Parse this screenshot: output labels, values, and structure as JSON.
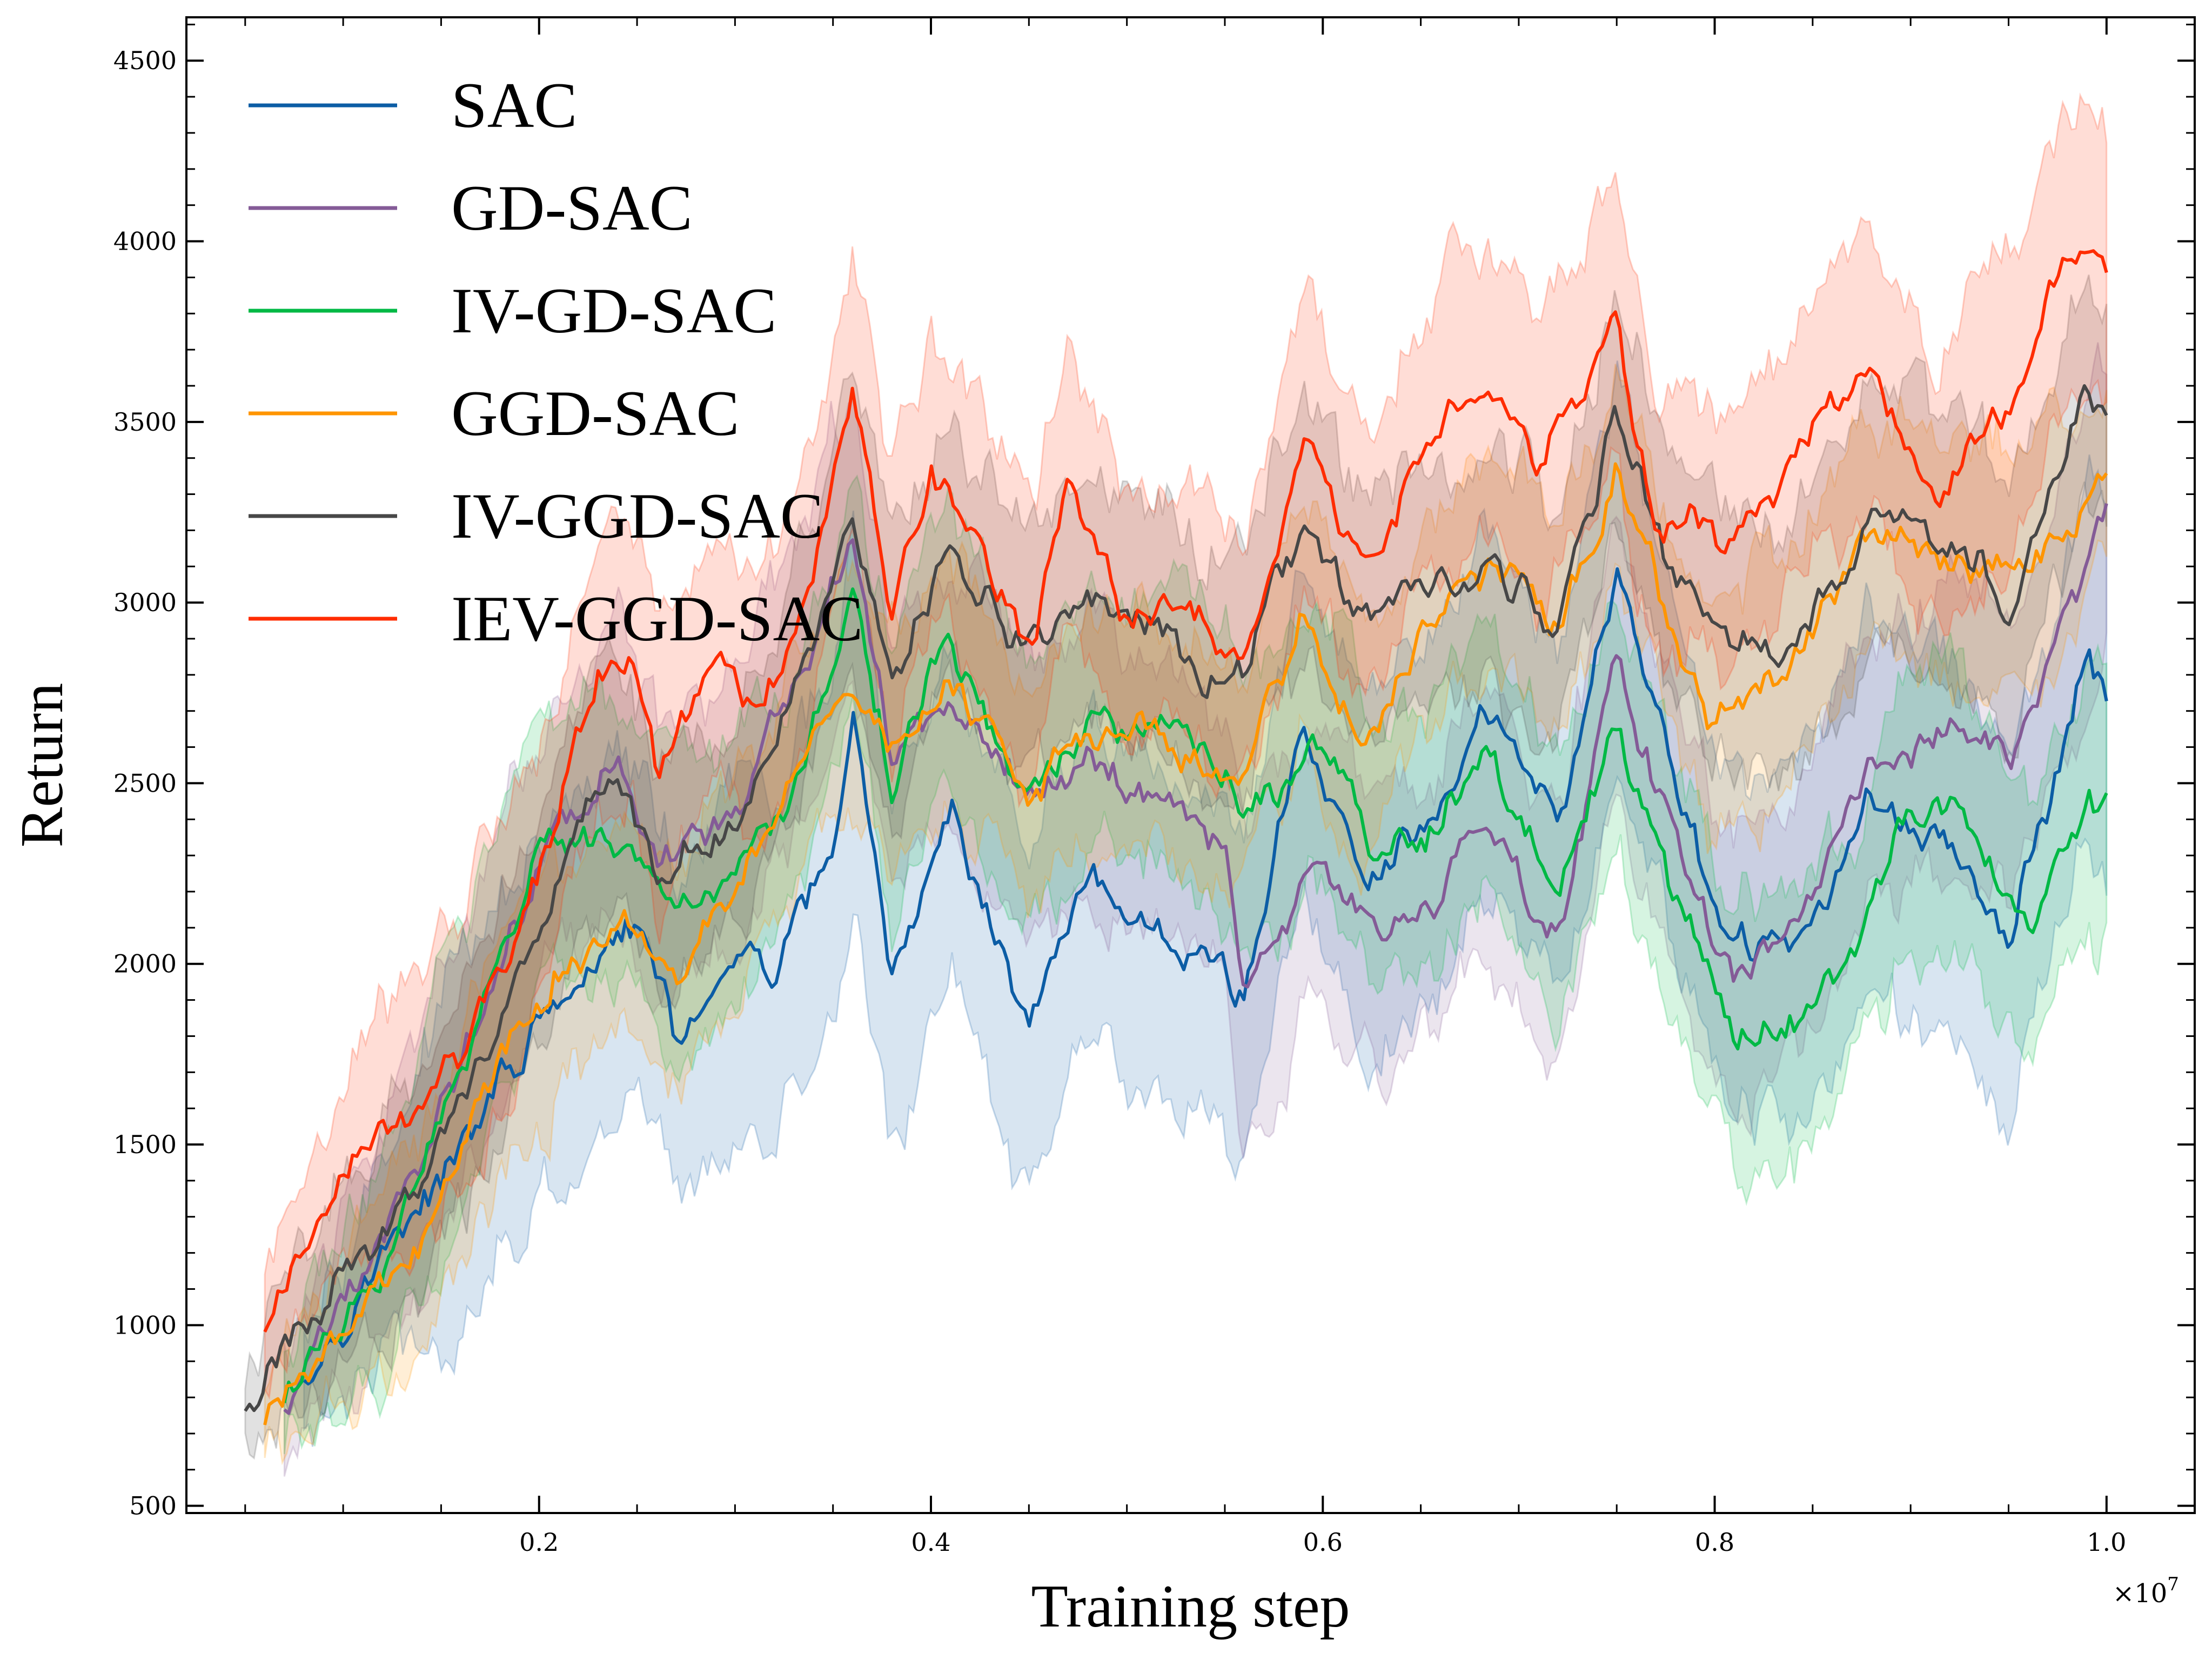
{
  "chart_data": {
    "type": "line",
    "title": "",
    "xlabel": "Training step",
    "ylabel": "Return",
    "x_scale_label": "×10^7",
    "x_scale_base": "×10",
    "x_scale_exp": "7",
    "xlim": [
      0.02,
      1.045
    ],
    "ylim": [
      480,
      4620
    ],
    "x_ticks": [
      0.2,
      0.4,
      0.6,
      0.8,
      1.0
    ],
    "x_tick_labels": [
      "0.2",
      "0.4",
      "0.6",
      "0.8",
      "1.0"
    ],
    "y_ticks": [
      500,
      1000,
      1500,
      2000,
      2500,
      3000,
      3500,
      4000,
      4500
    ],
    "y_tick_labels": [
      "500",
      "1000",
      "1500",
      "2000",
      "2500",
      "3000",
      "3500",
      "4000",
      "4500"
    ],
    "legend_position": "top-left",
    "grid": false,
    "series": [
      {
        "name": "SAC",
        "color": "#0C5DA5",
        "x": [
          0.08,
          0.12,
          0.16,
          0.2,
          0.25,
          0.27,
          0.3,
          0.32,
          0.35,
          0.36,
          0.38,
          0.41,
          0.45,
          0.48,
          0.52,
          0.55,
          0.56,
          0.59,
          0.62,
          0.66,
          0.68,
          0.72,
          0.75,
          0.78,
          0.81,
          0.85,
          0.88,
          0.92,
          0.95,
          0.99,
          1.0
        ],
        "y": [
          880,
          1180,
          1500,
          1820,
          2100,
          1740,
          2010,
          1960,
          2280,
          2680,
          1920,
          2420,
          1840,
          2220,
          2060,
          1980,
          1900,
          2680,
          2200,
          2420,
          2780,
          2360,
          3060,
          2520,
          2020,
          2140,
          2460,
          2360,
          2060,
          2820,
          2720
        ],
        "band": 480
      },
      {
        "name": "GD-SAC",
        "color": "#845B97",
        "x": [
          0.07,
          0.12,
          0.16,
          0.2,
          0.24,
          0.26,
          0.3,
          0.33,
          0.36,
          0.38,
          0.41,
          0.45,
          0.48,
          0.52,
          0.55,
          0.56,
          0.6,
          0.63,
          0.66,
          0.68,
          0.72,
          0.75,
          0.78,
          0.81,
          0.85,
          0.88,
          0.92,
          0.95,
          1.0
        ],
        "y": [
          760,
          1240,
          1740,
          2320,
          2580,
          2320,
          2420,
          2720,
          3180,
          2560,
          2700,
          2480,
          2580,
          2480,
          2320,
          1940,
          2340,
          2080,
          2220,
          2440,
          2080,
          2800,
          2320,
          1980,
          2200,
          2520,
          2660,
          2560,
          3280
        ],
        "band": 380
      },
      {
        "name": "IV-GD-SAC",
        "color": "#00B945",
        "x": [
          0.07,
          0.12,
          0.16,
          0.2,
          0.24,
          0.27,
          0.3,
          0.33,
          0.36,
          0.38,
          0.41,
          0.45,
          0.48,
          0.52,
          0.55,
          0.56,
          0.6,
          0.63,
          0.66,
          0.68,
          0.72,
          0.75,
          0.78,
          0.81,
          0.84,
          0.87,
          0.9,
          0.93,
          0.96,
          0.99,
          1.0
        ],
        "y": [
          780,
          1180,
          1700,
          2300,
          2360,
          2100,
          2240,
          2460,
          3000,
          2520,
          2900,
          2460,
          2620,
          2640,
          2560,
          2380,
          2620,
          2300,
          2380,
          2600,
          2180,
          2620,
          2160,
          1820,
          1860,
          2080,
          2400,
          2380,
          2100,
          2460,
          2420
        ],
        "band": 360
      },
      {
        "name": "GGD-SAC",
        "color": "#FF9500",
        "x": [
          0.06,
          0.1,
          0.14,
          0.18,
          0.21,
          0.25,
          0.27,
          0.3,
          0.33,
          0.36,
          0.38,
          0.41,
          0.45,
          0.48,
          0.52,
          0.56,
          0.59,
          0.62,
          0.66,
          0.69,
          0.72,
          0.75,
          0.78,
          0.8,
          0.84,
          0.88,
          0.92,
          0.96,
          1.0
        ],
        "y": [
          720,
          1000,
          1260,
          1720,
          1940,
          2120,
          1980,
          2200,
          2520,
          2740,
          2560,
          2780,
          2440,
          2680,
          2580,
          2520,
          3000,
          2620,
          3000,
          3100,
          2940,
          3380,
          2900,
          2640,
          2820,
          3180,
          3060,
          3100,
          3320
        ],
        "band": 320
      },
      {
        "name": "IV-GGD-SAC",
        "color": "#474747",
        "x": [
          0.05,
          0.1,
          0.14,
          0.18,
          0.21,
          0.24,
          0.26,
          0.3,
          0.33,
          0.36,
          0.38,
          0.41,
          0.45,
          0.48,
          0.52,
          0.55,
          0.56,
          0.59,
          0.62,
          0.66,
          0.69,
          0.72,
          0.75,
          0.78,
          0.8,
          0.84,
          0.88,
          0.92,
          0.95,
          0.99,
          1.0
        ],
        "y": [
          760,
          1140,
          1380,
          1900,
          2220,
          2560,
          2260,
          2400,
          2800,
          3200,
          2760,
          3120,
          2860,
          3000,
          2920,
          2760,
          2800,
          3220,
          2960,
          3020,
          3120,
          2900,
          3520,
          3060,
          2900,
          2860,
          3240,
          3220,
          3000,
          3580,
          3500
        ],
        "band": 340
      },
      {
        "name": "IEV-GGD-SAC",
        "color": "#FF2C00",
        "x": [
          0.06,
          0.1,
          0.14,
          0.18,
          0.21,
          0.23,
          0.25,
          0.26,
          0.29,
          0.31,
          0.33,
          0.36,
          0.38,
          0.4,
          0.42,
          0.45,
          0.47,
          0.5,
          0.53,
          0.56,
          0.59,
          0.62,
          0.66,
          0.68,
          0.71,
          0.75,
          0.77,
          0.8,
          0.84,
          0.88,
          0.91,
          0.95,
          0.98,
          1.0
        ],
        "y": [
          980,
          1400,
          1640,
          1920,
          2440,
          2800,
          2800,
          2480,
          2880,
          2740,
          2880,
          3580,
          2980,
          3360,
          3220,
          2880,
          3340,
          2920,
          3020,
          2800,
          3460,
          3100,
          3500,
          3600,
          3420,
          3780,
          3240,
          3160,
          3380,
          3660,
          3260,
          3540,
          3960,
          3920
        ],
        "band": 380
      }
    ]
  }
}
